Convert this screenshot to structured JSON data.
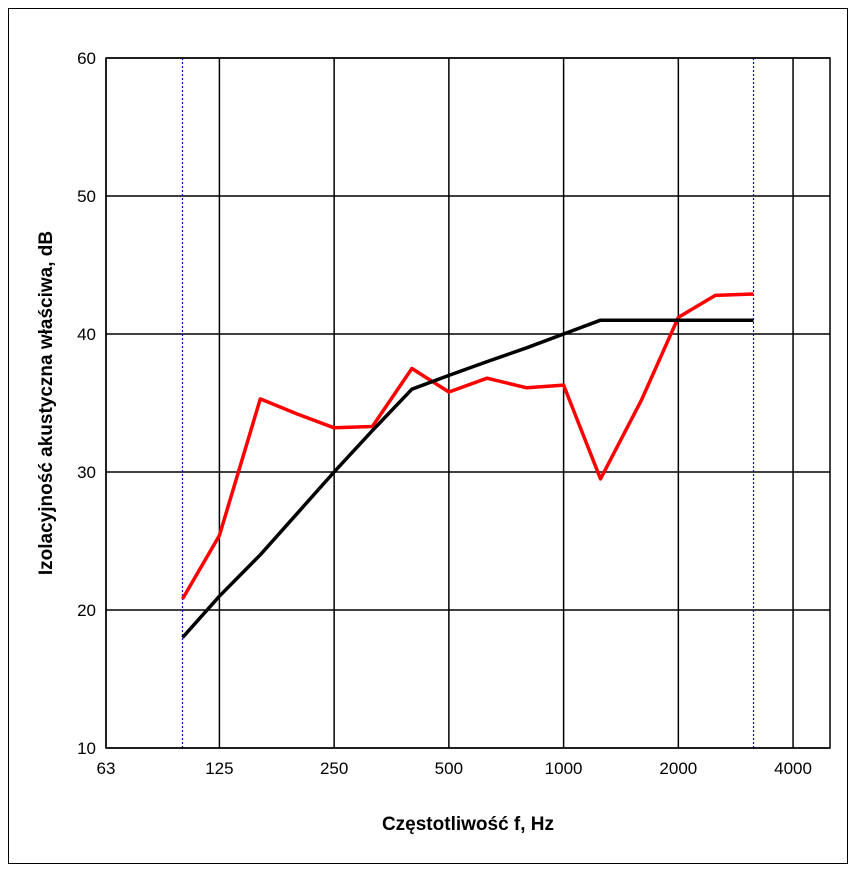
{
  "chart_data": {
    "type": "line",
    "title": "",
    "xlabel": "Częstotliwość f, Hz",
    "ylabel": "Izolacyjność akustyczna właściwa, dB",
    "x_scale": "log",
    "xlim": [
      63,
      5000
    ],
    "ylim": [
      10,
      60
    ],
    "x_ticks": [
      63,
      125,
      250,
      500,
      1000,
      2000,
      4000
    ],
    "x_tick_labels": [
      "63",
      "125",
      "250",
      "500",
      "1000",
      "2000",
      "4000"
    ],
    "y_ticks": [
      10,
      20,
      30,
      40,
      50,
      60
    ],
    "y_tick_labels": [
      "10",
      "20",
      "30",
      "40",
      "50",
      "60"
    ],
    "grid": true,
    "legend": "none",
    "reference_lines_x": [
      100,
      3150
    ],
    "series": [
      {
        "color": "#ff0000",
        "x": [
          100,
          125,
          160,
          200,
          250,
          315,
          400,
          500,
          630,
          800,
          1000,
          1250,
          1600,
          2000,
          2500,
          3150
        ],
        "values": [
          20.8,
          25.4,
          35.3,
          34.2,
          33.2,
          33.3,
          37.5,
          35.8,
          36.8,
          36.1,
          36.3,
          29.5,
          35.2,
          41.2,
          42.8,
          42.9
        ]
      },
      {
        "color": "#000000",
        "x": [
          100,
          125,
          160,
          200,
          250,
          315,
          400,
          500,
          630,
          800,
          1000,
          1250,
          1600,
          2000,
          2500,
          3150
        ],
        "values": [
          18,
          21,
          24,
          27,
          30,
          33,
          36,
          37,
          38,
          39,
          40,
          41,
          41,
          41,
          41,
          41
        ]
      }
    ]
  }
}
